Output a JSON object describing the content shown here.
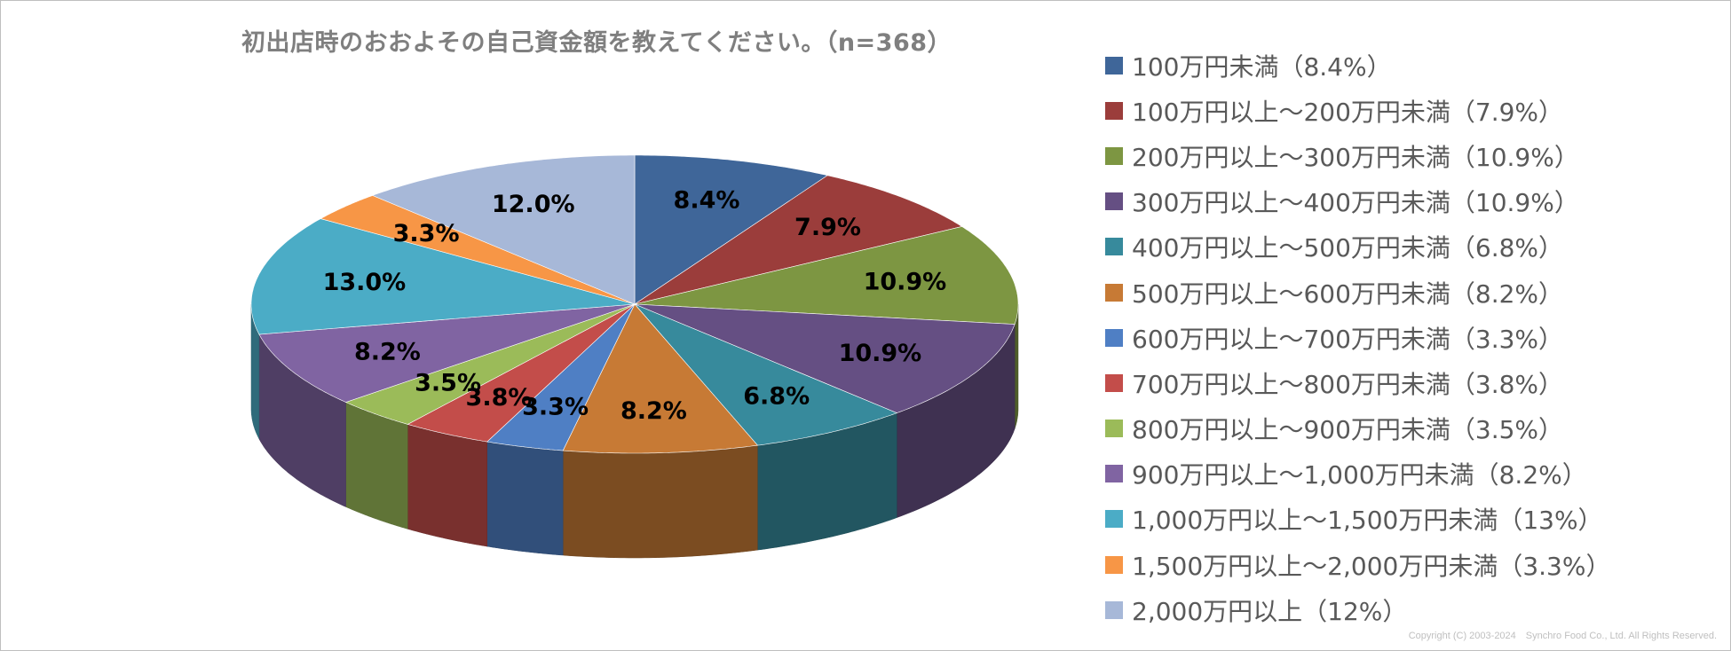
{
  "chart_data": {
    "type": "pie",
    "title": "初出店時のおおよその自己資金額を教えてください。（n=368）",
    "style": "3d-pie",
    "legend_position": "right",
    "slices": [
      {
        "legend": "100万円未満（8.4%）",
        "label": "8.4%",
        "value": 8.4,
        "color": "#3f6699"
      },
      {
        "legend": "100万円以上～200万円未満（7.9%）",
        "label": "7.9%",
        "value": 7.9,
        "color": "#9b3d3b"
      },
      {
        "legend": "200万円以上～300万円未満（10.9%）",
        "label": "10.9%",
        "value": 10.9,
        "color": "#7d9642"
      },
      {
        "legend": "300万円以上～400万円未満（10.9%）",
        "label": "10.9%",
        "value": 10.9,
        "color": "#654f83"
      },
      {
        "legend": "400万円以上～500万円未満（6.8%）",
        "label": "6.8%",
        "value": 6.8,
        "color": "#378a9c"
      },
      {
        "legend": "500万円以上～600万円未満（8.2%）",
        "label": "8.2%",
        "value": 8.2,
        "color": "#c77a35"
      },
      {
        "legend": "600万円以上～700万円未満（3.3%）",
        "label": "3.3%",
        "value": 3.3,
        "color": "#4f7fc4"
      },
      {
        "legend": "700万円以上～800万円未満（3.8%）",
        "label": "3.8%",
        "value": 3.8,
        "color": "#c34d4a"
      },
      {
        "legend": "800万円以上～900万円未満（3.5%）",
        "label": "3.5%",
        "value": 3.5,
        "color": "#9bbb59"
      },
      {
        "legend": "900万円以上～1,000万円未満（8.2%）",
        "label": "8.2%",
        "value": 8.2,
        "color": "#8064a2"
      },
      {
        "legend": "1,000万円以上～1,500万円未満（13%）",
        "label": "13.0%",
        "value": 13.0,
        "color": "#4bacc6"
      },
      {
        "legend": "1,500万円以上～2,000万円未満（3.3%）",
        "label": "3.3%",
        "value": 3.3,
        "color": "#f79646"
      },
      {
        "legend": "2,000万円以上（12%）",
        "label": "12.0%",
        "value": 12.0,
        "color": "#a7b8d8"
      }
    ]
  },
  "copyright": "Copyright (C) 2003-2024　Synchro Food Co., Ltd. All Rights Reserved."
}
